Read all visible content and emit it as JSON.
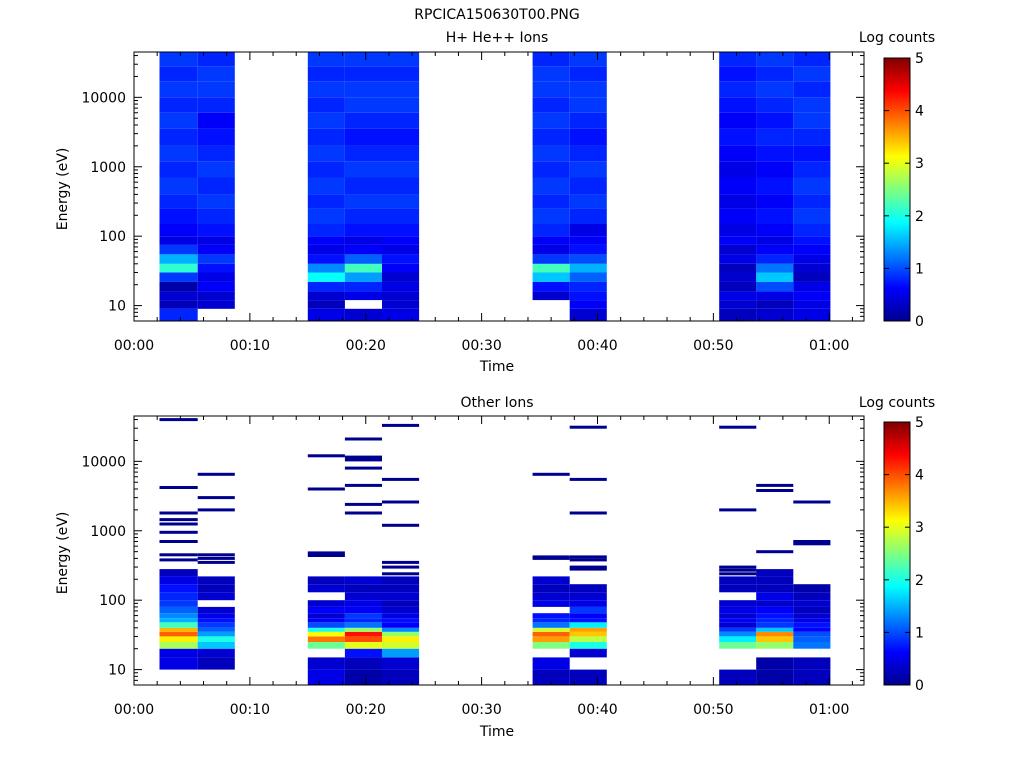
{
  "figure_title": "RPCICA150630T00.PNG",
  "chart_data": [
    {
      "type": "heatmap",
      "title": "H+ He++ Ions",
      "xlabel": "Time",
      "ylabel": "Energy (eV)",
      "x_ticks": [
        "00:00",
        "00:10",
        "00:20",
        "00:30",
        "00:40",
        "00:50",
        "01:00"
      ],
      "xlim_minutes": [
        0,
        63
      ],
      "y_scale": "log",
      "ylim": [
        6,
        45000
      ],
      "y_ticks": [
        "10",
        "100",
        "1000",
        "10000"
      ],
      "colorbar": {
        "label": "Log counts",
        "range": [
          0,
          5
        ],
        "ticks": [
          "0",
          "1",
          "2",
          "3",
          "4",
          "5"
        ]
      },
      "colormap": "jet",
      "grid": false,
      "energy_bin_edges": [
        6,
        9,
        12,
        16,
        22,
        30,
        40,
        55,
        75,
        100,
        150,
        250,
        400,
        700,
        1200,
        2000,
        3500,
        6000,
        10000,
        17000,
        28000,
        45000
      ],
      "scans": [
        {
          "start_min": 2.2,
          "end_min": 5.5,
          "log_counts": [
            0.8,
            0.3,
            0.4,
            0.2,
            0.9,
            2.1,
            1.5,
            0.9,
            0.5,
            0.6,
            0.7,
            0.8,
            0.9,
            0.8,
            0.9,
            0.8,
            0.9,
            0.8,
            0.9,
            0.8,
            0.9
          ]
        },
        {
          "start_min": 5.5,
          "end_min": 8.7,
          "log_counts": [
            null,
            0.4,
            0.4,
            0.6,
            0.5,
            0.7,
            0.9,
            0.6,
            0.5,
            0.7,
            0.8,
            0.9,
            0.8,
            0.9,
            0.8,
            0.7,
            0.6,
            0.8,
            0.9,
            0.9,
            0.8
          ]
        },
        {
          "start_min": 15.0,
          "end_min": 18.2,
          "log_counts": [
            0.5,
            0.3,
            0.4,
            0.8,
            1.9,
            1.3,
            0.7,
            0.5,
            0.6,
            0.8,
            0.9,
            0.8,
            0.9,
            0.8,
            0.9,
            0.8,
            0.9,
            0.8,
            0.9,
            0.8,
            0.9
          ]
        },
        {
          "start_min": 18.2,
          "end_min": 21.4,
          "log_counts": [
            0.4,
            null,
            0.5,
            0.8,
            1.4,
            2.2,
            1.1,
            0.6,
            0.5,
            0.7,
            0.8,
            0.9,
            0.8,
            0.9,
            0.8,
            0.7,
            0.8,
            0.9,
            0.9,
            0.8,
            0.9
          ]
        },
        {
          "start_min": 21.4,
          "end_min": 24.6,
          "log_counts": [
            0.5,
            0.4,
            0.4,
            0.5,
            0.4,
            0.6,
            0.7,
            0.5,
            0.6,
            0.7,
            0.8,
            0.9,
            0.8,
            0.9,
            0.8,
            0.7,
            0.8,
            0.9,
            0.9,
            0.8,
            0.9
          ]
        },
        {
          "start_min": 34.4,
          "end_min": 37.6,
          "log_counts": [
            null,
            null,
            0.4,
            0.7,
            1.6,
            2.2,
            0.9,
            0.5,
            0.6,
            0.8,
            0.9,
            0.8,
            0.9,
            0.8,
            0.9,
            0.8,
            0.9,
            0.8,
            0.9,
            0.9,
            0.8
          ]
        },
        {
          "start_min": 37.6,
          "end_min": 40.8,
          "log_counts": [
            0.4,
            0.6,
            0.7,
            0.8,
            1.1,
            1.5,
            1.0,
            0.7,
            0.6,
            0.5,
            0.8,
            0.9,
            0.8,
            0.9,
            0.8,
            0.7,
            0.8,
            0.9,
            0.9,
            0.8,
            0.9
          ]
        },
        {
          "start_min": 50.5,
          "end_min": 53.7,
          "log_counts": [
            0.3,
            0.4,
            0.5,
            0.3,
            0.4,
            0.3,
            0.5,
            0.4,
            0.6,
            0.5,
            0.6,
            0.5,
            0.6,
            0.5,
            0.6,
            0.7,
            0.6,
            0.7,
            0.8,
            0.7,
            0.8
          ]
        },
        {
          "start_min": 53.7,
          "end_min": 56.9,
          "log_counts": [
            0.4,
            0.3,
            0.5,
            1.0,
            1.6,
            1.2,
            0.8,
            0.6,
            0.5,
            0.6,
            0.7,
            0.6,
            0.7,
            0.6,
            0.7,
            0.8,
            0.7,
            0.8,
            0.9,
            0.8,
            0.9
          ]
        },
        {
          "start_min": 56.9,
          "end_min": 60.1,
          "log_counts": [
            0.5,
            0.5,
            0.6,
            0.5,
            0.3,
            0.4,
            0.5,
            0.6,
            0.7,
            0.8,
            0.9,
            0.8,
            0.9,
            0.8,
            0.7,
            0.8,
            0.9,
            0.9,
            0.8,
            0.9,
            0.8
          ]
        }
      ]
    },
    {
      "type": "heatmap",
      "title": "Other Ions",
      "xlabel": "Time",
      "ylabel": "Energy (eV)",
      "x_ticks": [
        "00:00",
        "00:10",
        "00:20",
        "00:30",
        "00:40",
        "00:50",
        "01:00"
      ],
      "xlim_minutes": [
        0,
        63
      ],
      "y_scale": "log",
      "ylim": [
        6,
        45000
      ],
      "y_ticks": [
        "10",
        "100",
        "1000",
        "10000"
      ],
      "colorbar": {
        "label": "Log counts",
        "range": [
          0,
          5
        ],
        "ticks": [
          "0",
          "1",
          "2",
          "3",
          "4",
          "5"
        ]
      },
      "colormap": "jet",
      "grid": false,
      "energy_bin_edges": [
        6,
        10,
        15,
        20,
        25,
        30,
        35,
        40,
        48,
        55,
        65,
        80,
        100,
        130,
        170,
        220,
        280
      ],
      "scans": [
        {
          "start_min": 2.2,
          "end_min": 5.5,
          "log_counts": [
            null,
            0.5,
            0.5,
            2.7,
            3.2,
            3.9,
            3.5,
            2.2,
            1.5,
            1.3,
            1.1,
            0.9,
            0.8,
            0.7,
            0.5,
            0.3
          ],
          "sparse_levels_ev": [
            40000,
            4200,
            1800,
            1450,
            1250,
            950,
            700,
            450,
            380
          ]
        },
        {
          "start_min": 5.5,
          "end_min": 8.7,
          "log_counts": [
            null,
            0.3,
            0.4,
            1.6,
            2.0,
            1.4,
            1.1,
            0.9,
            0.7,
            0.5,
            0.4,
            null,
            0.4,
            0.3,
            0.3,
            null
          ],
          "sparse_levels_ev": [
            6500,
            3000,
            2000,
            450,
            400,
            350
          ]
        },
        {
          "start_min": 15.0,
          "end_min": 18.2,
          "log_counts": [
            0.5,
            0.4,
            null,
            2.4,
            3.8,
            3.1,
            2.0,
            1.0,
            0.6,
            0.4,
            0.6,
            0.4,
            null,
            0.4,
            0.3,
            null
          ],
          "sparse_levels_ev": [
            12000,
            4000,
            480,
            440
          ]
        },
        {
          "start_min": 18.2,
          "end_min": 21.4,
          "log_counts": [
            0.2,
            0.3,
            0.7,
            3.0,
            4.0,
            4.3,
            2.6,
            1.2,
            0.8,
            0.9,
            0.6,
            0.5,
            0.4,
            0.3,
            0.4,
            null
          ],
          "sparse_levels_ev": [
            21000,
            11500,
            10500,
            8000,
            4500,
            2400,
            1800
          ]
        },
        {
          "start_min": 21.4,
          "end_min": 24.6,
          "log_counts": [
            0.3,
            0.4,
            1.4,
            2.9,
            3.2,
            2.6,
            1.3,
            0.6,
            0.7,
            0.5,
            0.4,
            0.3,
            0.4,
            0.3,
            0.3,
            null
          ],
          "sparse_levels_ev": [
            33000,
            5500,
            2600,
            1200,
            350,
            300,
            240
          ]
        },
        {
          "start_min": 34.4,
          "end_min": 37.6,
          "log_counts": [
            0.3,
            0.5,
            null,
            2.5,
            3.6,
            3.9,
            2.9,
            1.2,
            0.8,
            0.7,
            null,
            0.5,
            0.4,
            0.3,
            0.4,
            null
          ],
          "sparse_levels_ev": [
            6500,
            420,
            400
          ]
        },
        {
          "start_min": 37.6,
          "end_min": 40.8,
          "log_counts": [
            0.3,
            null,
            0.4,
            2.0,
            2.8,
            3.4,
            3.6,
            1.8,
            0.7,
            0.6,
            0.9,
            0.5,
            0.4,
            0.3,
            null,
            null
          ],
          "sparse_levels_ev": [
            31000,
            5500,
            1800,
            420,
            380,
            300,
            280
          ]
        },
        {
          "start_min": 50.5,
          "end_min": 53.7,
          "log_counts": [
            0.3,
            null,
            null,
            2.4,
            1.8,
            1.3,
            0.9,
            0.4,
            0.6,
            0.4,
            0.5,
            0.4,
            null,
            0.3,
            0.3,
            null
          ],
          "sparse_levels_ev": [
            31000,
            2000,
            300,
            270,
            240
          ]
        },
        {
          "start_min": 53.7,
          "end_min": 56.9,
          "log_counts": [
            0.2,
            0.2,
            null,
            2.6,
            3.4,
            3.7,
            1.6,
            0.9,
            0.8,
            0.7,
            0.6,
            0.4,
            0.5,
            0.3,
            0.3,
            0.3
          ],
          "sparse_levels_ev": [
            4500,
            3800,
            500
          ]
        },
        {
          "start_min": 56.9,
          "end_min": 60.1,
          "log_counts": [
            0.3,
            0.3,
            null,
            1.2,
            1.1,
            1.0,
            0.6,
            0.7,
            0.5,
            0.4,
            0.3,
            0.4,
            0.3,
            0.2,
            null,
            null
          ],
          "sparse_levels_ev": [
            2600,
            700,
            650
          ]
        }
      ]
    }
  ]
}
